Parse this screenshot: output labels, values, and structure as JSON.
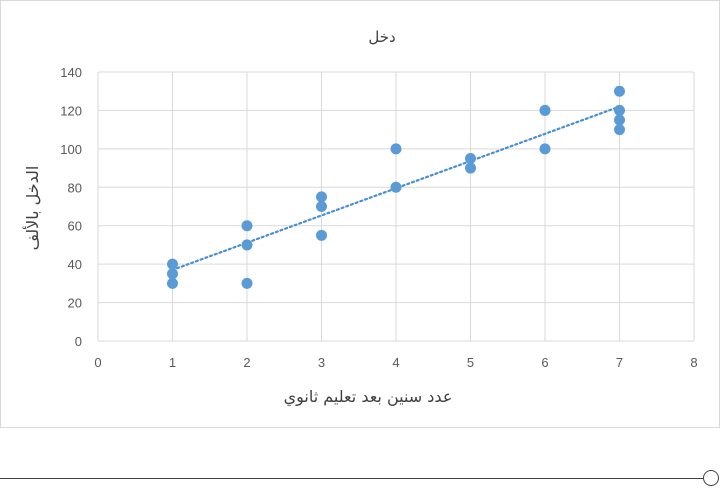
{
  "chart_data": {
    "type": "scatter",
    "title": "دخل",
    "xlabel": "عدد سنين بعد تعليم ثانوي",
    "ylabel": "الدخل بالألف",
    "xlim": [
      0,
      8
    ],
    "ylim": [
      0,
      140
    ],
    "x_ticks": [
      0,
      1,
      2,
      3,
      4,
      5,
      6,
      7,
      8
    ],
    "y_ticks": [
      0,
      20,
      40,
      60,
      80,
      100,
      120,
      140
    ],
    "grid": true,
    "legend": "none",
    "marker_color": "#5b9bd5",
    "trendline": {
      "type": "linear",
      "style": "dotted",
      "color": "#4a8fd0",
      "x_range": [
        1,
        7
      ],
      "y_start": 37,
      "y_end": 122
    },
    "points": [
      {
        "x": 1,
        "y": 40
      },
      {
        "x": 1,
        "y": 35
      },
      {
        "x": 1,
        "y": 30
      },
      {
        "x": 2,
        "y": 60
      },
      {
        "x": 2,
        "y": 50
      },
      {
        "x": 2,
        "y": 30
      },
      {
        "x": 3,
        "y": 75
      },
      {
        "x": 3,
        "y": 70
      },
      {
        "x": 3,
        "y": 55
      },
      {
        "x": 4,
        "y": 100
      },
      {
        "x": 4,
        "y": 80
      },
      {
        "x": 5,
        "y": 95
      },
      {
        "x": 5,
        "y": 90
      },
      {
        "x": 6,
        "y": 120
      },
      {
        "x": 6,
        "y": 100
      },
      {
        "x": 7,
        "y": 130
      },
      {
        "x": 7,
        "y": 120
      },
      {
        "x": 7,
        "y": 115
      },
      {
        "x": 7,
        "y": 110
      }
    ]
  }
}
